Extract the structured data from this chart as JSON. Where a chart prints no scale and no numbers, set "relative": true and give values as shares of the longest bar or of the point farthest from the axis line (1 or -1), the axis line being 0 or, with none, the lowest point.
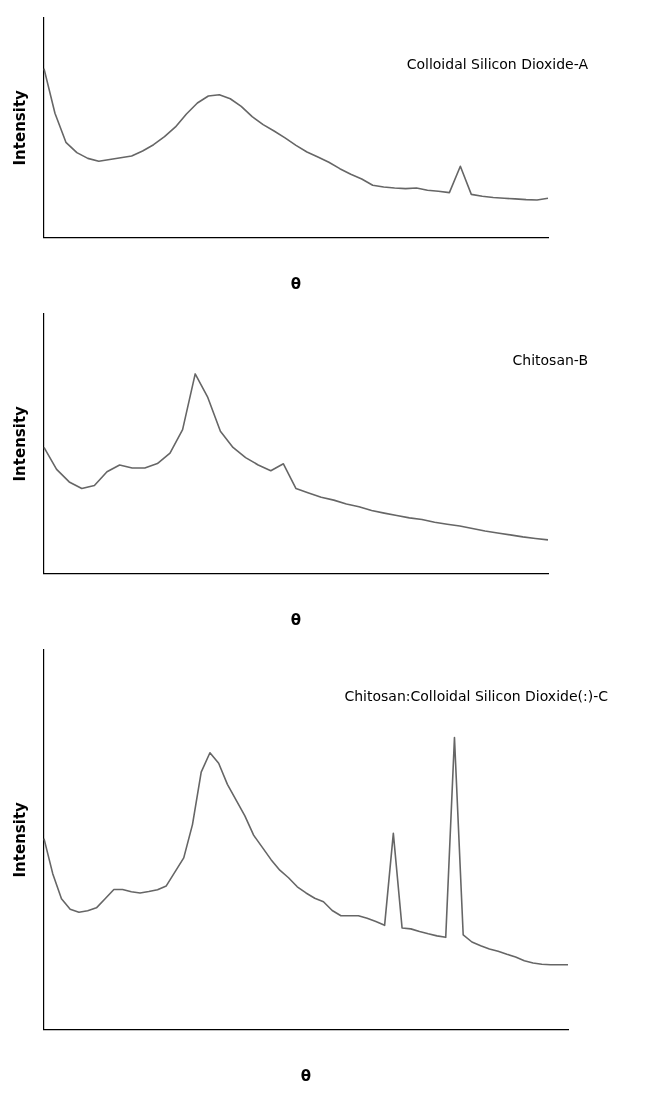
{
  "chart_data": [
    {
      "type": "line",
      "relative": true,
      "xlabel": "θ",
      "ylabel": "Intensity",
      "annotations": [
        "Colloidal Silicon Dioxide-A"
      ],
      "color": "#666666",
      "marker": "none",
      "legend": false,
      "grid": false,
      "categories": [
        null,
        null,
        null,
        null,
        null,
        null,
        null,
        null,
        null,
        null,
        null,
        null,
        null,
        null,
        null,
        null,
        null,
        null,
        null,
        null,
        null,
        null,
        null,
        null,
        null,
        null,
        null,
        null,
        null,
        null,
        null,
        null,
        null,
        null,
        null,
        null,
        null,
        null,
        null,
        null,
        null,
        null,
        null,
        null,
        null,
        null,
        null
      ],
      "values": [
        1.0,
        0.736,
        0.564,
        0.503,
        0.469,
        0.452,
        0.462,
        0.473,
        0.483,
        0.513,
        0.55,
        0.598,
        0.655,
        0.732,
        0.797,
        0.838,
        0.846,
        0.822,
        0.777,
        0.716,
        0.669,
        0.631,
        0.59,
        0.546,
        0.507,
        0.477,
        0.446,
        0.408,
        0.375,
        0.347,
        0.31,
        0.3,
        0.294,
        0.29,
        0.294,
        0.28,
        0.274,
        0.266,
        0.422,
        0.256,
        0.245,
        0.237,
        0.233,
        0.229,
        0.225,
        0.223,
        0.233
      ]
    },
    {
      "type": "line",
      "relative": true,
      "xlabel": "θ",
      "ylabel": "Intensity",
      "annotations": [
        "Chitosan-B"
      ],
      "color": "#666666",
      "marker": "none",
      "legend": false,
      "grid": false,
      "categories": [
        null,
        null,
        null,
        null,
        null,
        null,
        null,
        null,
        null,
        null,
        null,
        null,
        null,
        null,
        null,
        null,
        null,
        null,
        null,
        null,
        null,
        null,
        null,
        null,
        null,
        null,
        null,
        null,
        null,
        null,
        null,
        null,
        null,
        null,
        null,
        null,
        null,
        null,
        null,
        null,
        null
      ],
      "values": [
        0.632,
        0.522,
        0.459,
        0.426,
        0.441,
        0.51,
        0.544,
        0.529,
        0.529,
        0.551,
        0.603,
        0.721,
        1.0,
        0.882,
        0.713,
        0.632,
        0.581,
        0.544,
        0.515,
        0.55,
        0.426,
        0.404,
        0.382,
        0.368,
        0.349,
        0.335,
        0.316,
        0.303,
        0.291,
        0.279,
        0.271,
        0.257,
        0.247,
        0.238,
        0.226,
        0.213,
        0.203,
        0.194,
        0.184,
        0.176,
        0.169
      ]
    },
    {
      "type": "line",
      "relative": true,
      "xlabel": "θ",
      "ylabel": "Intensity",
      "annotations": [
        "Chitosan:Colloidal Silicon Dioxide(:)-C"
      ],
      "color": "#666666",
      "marker": "none",
      "legend": false,
      "grid": false,
      "categories": [
        null,
        null,
        null,
        null,
        null,
        null,
        null,
        null,
        null,
        null,
        null,
        null,
        null,
        null,
        null,
        null,
        null,
        null,
        null,
        null,
        null,
        null,
        null,
        null,
        null,
        null,
        null,
        null,
        null,
        null,
        null,
        null,
        null,
        null,
        null,
        null,
        null,
        null,
        null,
        null,
        null,
        null,
        null,
        null,
        null,
        null,
        null,
        null,
        null,
        null,
        null,
        null,
        null,
        null,
        null,
        null,
        null,
        null,
        null,
        null,
        null
      ],
      "values": [
        0.654,
        0.534,
        0.448,
        0.412,
        0.402,
        0.407,
        0.417,
        0.448,
        0.48,
        0.48,
        0.472,
        0.468,
        0.473,
        0.479,
        0.492,
        0.54,
        0.588,
        0.702,
        0.882,
        0.948,
        0.912,
        0.84,
        0.786,
        0.732,
        0.666,
        0.624,
        0.582,
        0.546,
        0.52,
        0.489,
        0.468,
        0.45,
        0.438,
        0.408,
        0.39,
        0.39,
        0.39,
        0.381,
        0.37,
        0.357,
        0.672,
        0.348,
        0.345,
        0.336,
        0.328,
        0.321,
        0.316,
        1.0,
        0.324,
        0.3,
        0.287,
        0.276,
        0.268,
        0.258,
        0.249,
        0.236,
        0.228,
        0.224,
        0.222,
        0.222,
        0.222
      ]
    }
  ]
}
